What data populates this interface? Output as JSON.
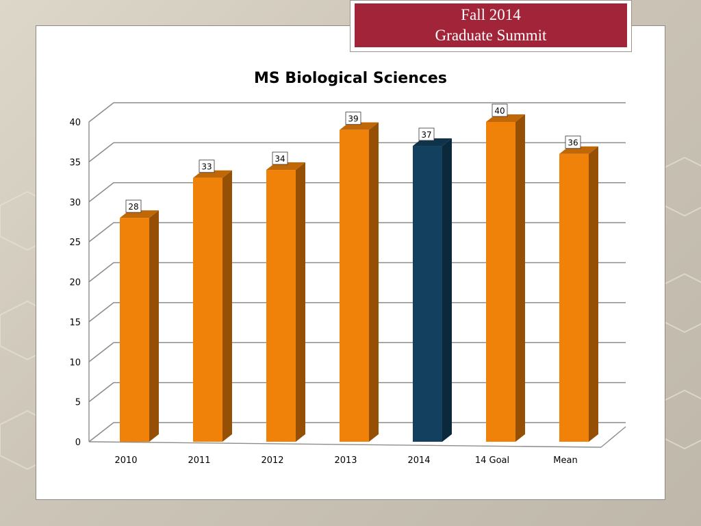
{
  "banner": {
    "line1": "Fall 2014",
    "line2": "Graduate Summit"
  },
  "colors": {
    "banner_red": "#a22438",
    "bar_orange": "#f08109",
    "bar_highlight": "#14405f",
    "grid": "#8c8c8c"
  },
  "chart_data": {
    "type": "bar",
    "title": "MS Biological Sciences",
    "xlabel": "",
    "ylabel": "",
    "categories": [
      "2010",
      "2011",
      "2012",
      "2013",
      "2014",
      "14 Goal",
      "Mean"
    ],
    "values": [
      28,
      33,
      34,
      39,
      37,
      40,
      36
    ],
    "highlight_category": "2014",
    "ylim": [
      0,
      40
    ],
    "yticks": [
      0,
      5,
      10,
      15,
      20,
      25,
      30,
      35,
      40
    ],
    "grid": true,
    "legend": "none",
    "data_labels": true,
    "style": "3d-column"
  }
}
